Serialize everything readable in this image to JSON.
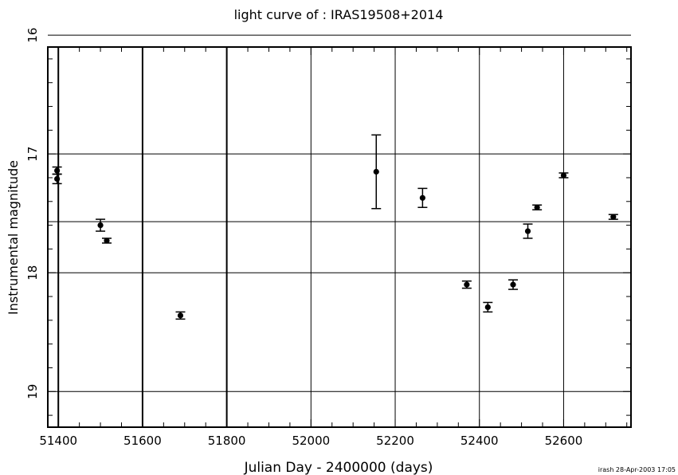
{
  "chart_data": {
    "type": "scatter",
    "title": "light curve of : IRAS19508+2014",
    "xlabel": "Julian Day - 2400000 (days)",
    "ylabel": "Instrumental magnitude",
    "footer": "irash 28-Apr-2003 17:05",
    "xlim": [
      51375,
      52760
    ],
    "ylim": [
      19.3,
      16.1
    ],
    "y_inverted": true,
    "grid": true,
    "xticks": [
      51400,
      51600,
      51800,
      52000,
      52200,
      52400,
      52600
    ],
    "xtick_labels": [
      "51400",
      "51600",
      "51800",
      "52000",
      "52200",
      "52400",
      "52600"
    ],
    "yticks": [
      16,
      17,
      18,
      19
    ],
    "ytick_labels": [
      "16",
      "17",
      "18",
      "19"
    ],
    "horizontal_lines": [
      16,
      17,
      17.57,
      18,
      19
    ],
    "vertical_lines": [
      51400,
      51600,
      51800,
      52000,
      52200,
      52400,
      52600
    ],
    "points": [
      {
        "x": 51397,
        "y": 17.14,
        "err": 0.03
      },
      {
        "x": 51397,
        "y": 17.21,
        "err": 0.04
      },
      {
        "x": 51500,
        "y": 17.6,
        "err": 0.05
      },
      {
        "x": 51515,
        "y": 17.73,
        "err": 0.02
      },
      {
        "x": 51690,
        "y": 18.36,
        "err": 0.03
      },
      {
        "x": 52155,
        "y": 17.15,
        "err": 0.31
      },
      {
        "x": 52265,
        "y": 17.37,
        "err": 0.08
      },
      {
        "x": 52370,
        "y": 18.1,
        "err": 0.03
      },
      {
        "x": 52420,
        "y": 18.29,
        "err": 0.04
      },
      {
        "x": 52480,
        "y": 18.1,
        "err": 0.04
      },
      {
        "x": 52515,
        "y": 17.65,
        "err": 0.06
      },
      {
        "x": 52537,
        "y": 17.45,
        "err": 0.02
      },
      {
        "x": 52600,
        "y": 17.18,
        "err": 0.02
      },
      {
        "x": 52718,
        "y": 17.53,
        "err": 0.02
      }
    ]
  }
}
